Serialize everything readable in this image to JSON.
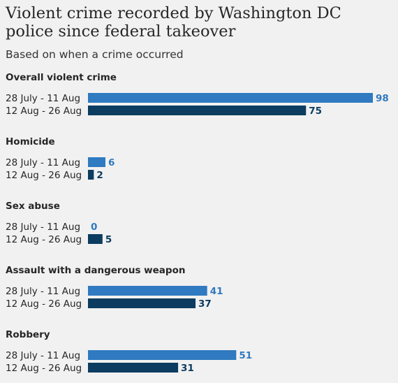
{
  "title": "Violent crime recorded by Washington DC police since federal takeover",
  "subtitle": "Based on when a crime occurred",
  "colors": {
    "series_1": "#2f7ac0",
    "series_2": "#0c3c60",
    "background": "#f1f1f1"
  },
  "chart_data": {
    "type": "bar",
    "orientation": "horizontal",
    "title": "Violent crime recorded by Washington DC police since federal takeover",
    "subtitle": "Based on when a crime occurred",
    "categories": [
      "Overall violent crime",
      "Homicide",
      "Sex abuse",
      "Assault with a dangerous weapon",
      "Robbery"
    ],
    "series": [
      {
        "name": "28 July - 11 Aug",
        "color": "#2f7ac0",
        "values": [
          98,
          6,
          0,
          41,
          51
        ]
      },
      {
        "name": "12 Aug - 26 Aug",
        "color": "#0c3c60",
        "values": [
          75,
          2,
          5,
          37,
          31
        ]
      }
    ],
    "xlim": [
      0,
      98
    ],
    "grid": false,
    "legend": "none"
  }
}
